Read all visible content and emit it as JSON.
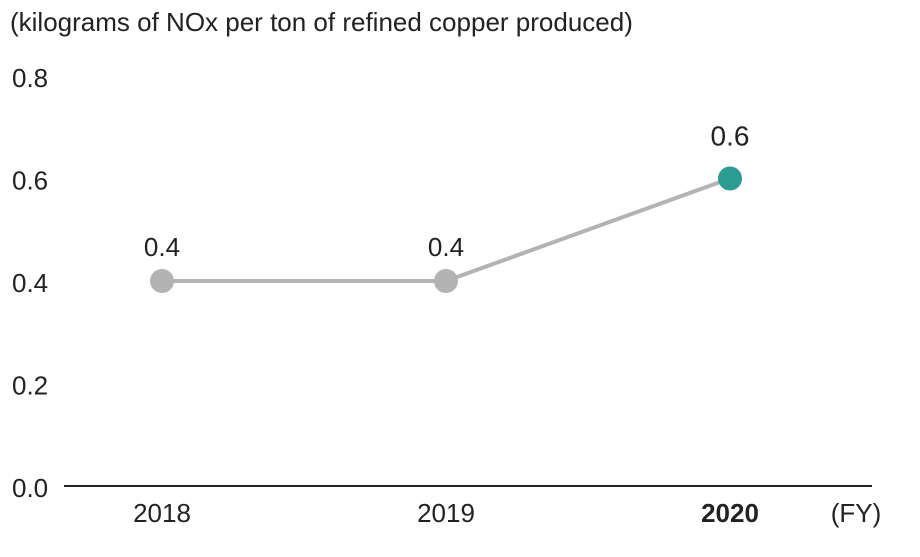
{
  "chart_data": {
    "type": "line",
    "title": "",
    "unit_label": "(kilograms of NOx per ton of refined copper produced)",
    "x_axis_suffix": "(FY)",
    "categories": [
      "2018",
      "2019",
      "2020"
    ],
    "series": [
      {
        "values": [
          0.4,
          0.4,
          0.6
        ],
        "data_labels": [
          "0.4",
          "0.4",
          "0.6"
        ]
      }
    ],
    "ylim": [
      0.0,
      0.8
    ],
    "y_ticks": [
      0.0,
      0.2,
      0.4,
      0.6,
      0.8
    ],
    "y_tick_labels": [
      "0.0",
      "0.2",
      "0.4",
      "0.6",
      "0.8"
    ],
    "highlight_index": 2,
    "grid": false,
    "colors": {
      "line": "#b3b3b3",
      "marker": "#b3b3b3",
      "highlight": "#2a9c92",
      "axis": "#222222",
      "text": "#222222"
    }
  }
}
